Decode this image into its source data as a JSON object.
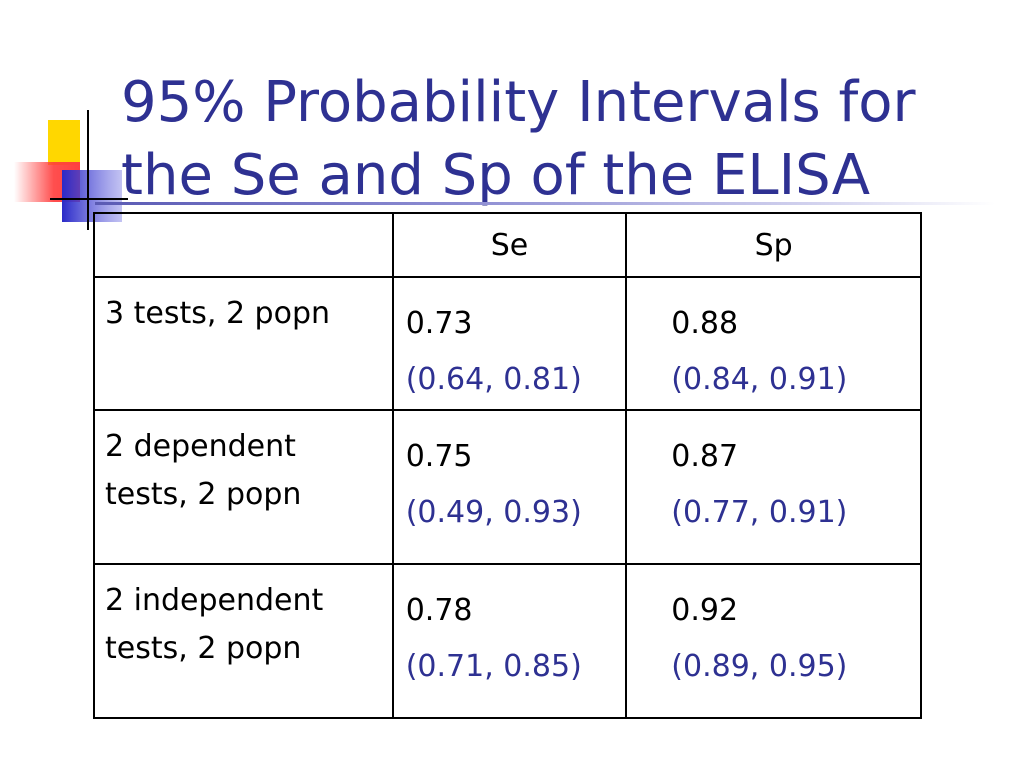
{
  "title": {
    "line1": "95% Probability Intervals for",
    "line2": "the Se and Sp of the ELISA"
  },
  "table": {
    "headers": [
      "",
      "Se",
      "Sp"
    ],
    "rows": [
      {
        "method_line1": "3 tests, 2 popn",
        "method_line2": "",
        "se": "0.73",
        "se_interval": "(0.64, 0.81)",
        "sp": "0.88",
        "sp_interval": "(0.84, 0.91)"
      },
      {
        "method_line1": "2 dependent",
        "method_line2": "tests, 2 popn",
        "se": "0.75",
        "se_interval": "(0.49, 0.93)",
        "sp": "0.87",
        "sp_interval": "(0.77, 0.91)"
      },
      {
        "method_line1": "2 independent",
        "method_line2": "tests, 2 popn",
        "se": "0.78",
        "se_interval": "(0.71, 0.85)",
        "sp": "0.92",
        "sp_interval": "(0.89, 0.95)"
      }
    ]
  },
  "colors": {
    "title": "#2e3192",
    "interval_text": "#2e3192",
    "deco_yellow": "#ffd700",
    "deco_blue": "#3333cc",
    "deco_red": "#ff3b3b"
  }
}
